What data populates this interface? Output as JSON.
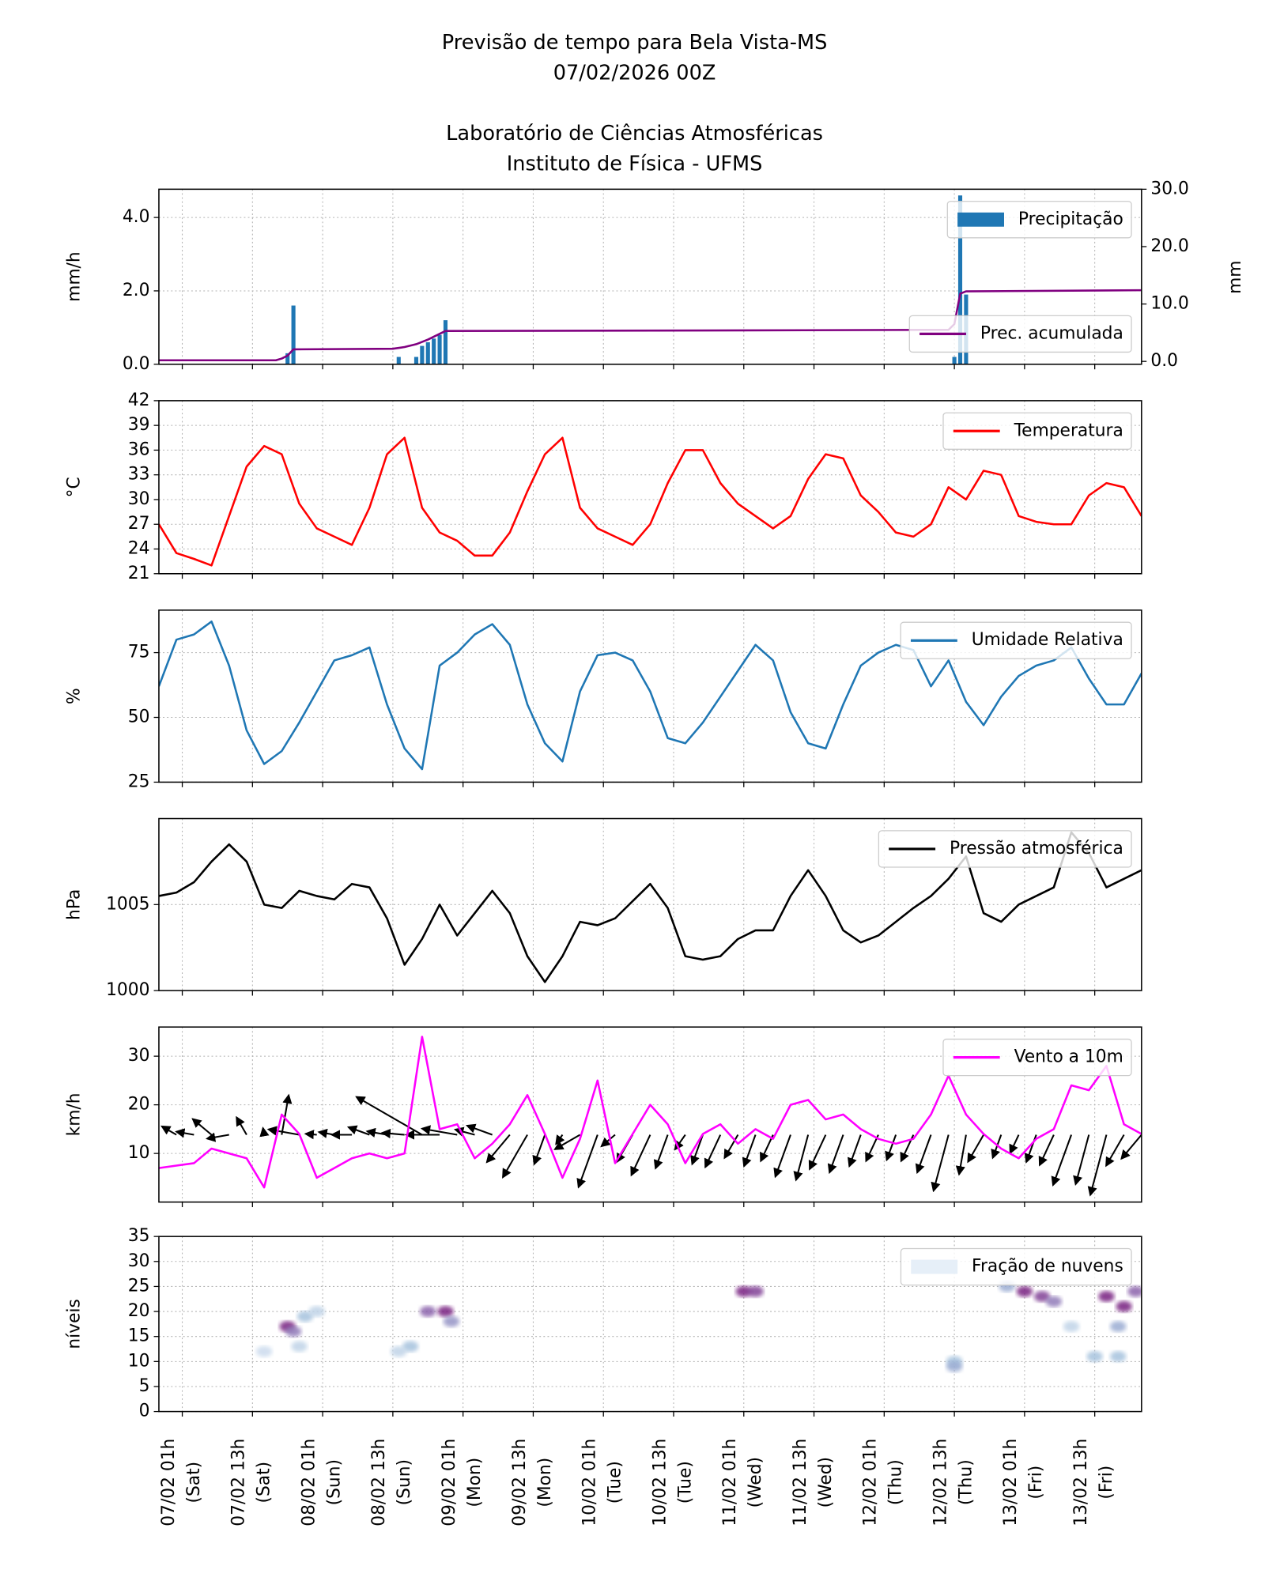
{
  "header": {
    "title_lines": [
      "Previsão de tempo para Bela Vista-MS",
      "07/02/2026 00Z",
      "Laboratório de Ciências Atmosféricas",
      "Instituto de Física - UFMS"
    ]
  },
  "chart_data": [
    {
      "type": "bar",
      "ylabel": "mm/h",
      "y2label": "mm",
      "xlim": [
        0,
        168
      ],
      "ylim": [
        0,
        4.77
      ],
      "y2lim": [
        -0.5,
        30
      ],
      "yticks": [
        {
          "value": 0,
          "label": "0.0"
        },
        {
          "value": 2,
          "label": "2.0"
        },
        {
          "value": 4,
          "label": "4.0"
        }
      ],
      "y2ticks": [
        {
          "value": 0,
          "label": "0.0"
        },
        {
          "value": 10,
          "label": "10.0"
        },
        {
          "value": 20,
          "label": "20.0"
        },
        {
          "value": 30,
          "label": "30.0"
        }
      ],
      "xticks": [
        4,
        16,
        28,
        40,
        52,
        64,
        76,
        88,
        100,
        112,
        124,
        136,
        148,
        160
      ],
      "grid": true,
      "legend": "upper right",
      "legend_y2": "lower right",
      "series": [
        {
          "name": "Precipitação",
          "color": "#1f77b4",
          "x": [
            22,
            23,
            41,
            44,
            45,
            46,
            47,
            48,
            49,
            136,
            137,
            138
          ],
          "values": [
            0.3,
            1.6,
            0.2,
            0.2,
            0.5,
            0.6,
            0.7,
            0.8,
            1.2,
            0.2,
            4.6,
            1.9
          ]
        },
        {
          "name": "Prec. acumulada",
          "color": "purple",
          "axis": "y2",
          "x": [
            0,
            20,
            21,
            22,
            23,
            40,
            42,
            44,
            46,
            48,
            49,
            100,
            135,
            136,
            137,
            138,
            168
          ],
          "values": [
            0.2,
            0.2,
            0.5,
            1.0,
            2.1,
            2.2,
            2.5,
            3.0,
            3.8,
            4.8,
            5.3,
            5.4,
            5.5,
            6.5,
            11.8,
            12.2,
            12.4
          ]
        }
      ]
    },
    {
      "type": "line",
      "ylabel": "°C",
      "xlim": [
        0,
        168
      ],
      "ylim": [
        21,
        42
      ],
      "yticks": [
        21,
        24,
        27,
        30,
        33,
        36,
        39,
        42
      ],
      "xticks": [
        4,
        16,
        28,
        40,
        52,
        64,
        76,
        88,
        100,
        112,
        124,
        136,
        148,
        160
      ],
      "grid": true,
      "legend": "upper right",
      "x": [
        0,
        3,
        6,
        9,
        12,
        15,
        18,
        21,
        24,
        27,
        30,
        33,
        36,
        39,
        42,
        45,
        48,
        51,
        54,
        57,
        60,
        63,
        66,
        69,
        72,
        75,
        78,
        81,
        84,
        87,
        90,
        93,
        96,
        99,
        102,
        105,
        108,
        111,
        114,
        117,
        120,
        123,
        126,
        129,
        132,
        135,
        138,
        141,
        144,
        147,
        150,
        153,
        156,
        159,
        162,
        165,
        168
      ],
      "series": [
        {
          "name": "Temperatura",
          "color": "red",
          "values": [
            27,
            23.5,
            22.8,
            22,
            28,
            34,
            36.5,
            35.5,
            29.5,
            26.5,
            25.5,
            24.5,
            29,
            35.5,
            37.5,
            29,
            26,
            25,
            23.2,
            23.2,
            26,
            31,
            35.5,
            37.5,
            29,
            26.5,
            25.5,
            24.5,
            27,
            32,
            36,
            36,
            32,
            29.5,
            28,
            26.5,
            28,
            32.5,
            35.5,
            35,
            30.5,
            28.5,
            26,
            25.5,
            27,
            31.5,
            30,
            33.5,
            33,
            28,
            27.3,
            27,
            27,
            30.5,
            32,
            31.5,
            28
          ]
        }
      ]
    },
    {
      "type": "line",
      "ylabel": "%",
      "xlim": [
        0,
        168
      ],
      "ylim": [
        25,
        91.4
      ],
      "yticks": [
        25,
        50,
        75
      ],
      "xticks": [
        4,
        16,
        28,
        40,
        52,
        64,
        76,
        88,
        100,
        112,
        124,
        136,
        148,
        160
      ],
      "grid": true,
      "legend": "upper right",
      "x": [
        0,
        3,
        6,
        9,
        12,
        15,
        18,
        21,
        24,
        27,
        30,
        33,
        36,
        39,
        42,
        45,
        48,
        51,
        54,
        57,
        60,
        63,
        66,
        69,
        72,
        75,
        78,
        81,
        84,
        87,
        90,
        93,
        96,
        99,
        102,
        105,
        108,
        111,
        114,
        117,
        120,
        123,
        126,
        129,
        132,
        135,
        138,
        141,
        144,
        147,
        150,
        153,
        156,
        159,
        162,
        165,
        168
      ],
      "series": [
        {
          "name": "Umidade Relativa",
          "color": "#1f77b4",
          "values": [
            62,
            80,
            82,
            87,
            70,
            45,
            32,
            37,
            48,
            60,
            72,
            74,
            77,
            55,
            38,
            30,
            70,
            75,
            82,
            86,
            78,
            55,
            40,
            33,
            60,
            74,
            75,
            72,
            60,
            42,
            40,
            48,
            58,
            68,
            78,
            72,
            52,
            40,
            38,
            55,
            70,
            75,
            78,
            76,
            62,
            72,
            56,
            47,
            58,
            66,
            70,
            72,
            77,
            65,
            55,
            55,
            67
          ]
        }
      ]
    },
    {
      "type": "line",
      "ylabel": "hPa",
      "xlim": [
        0,
        168
      ],
      "ylim": [
        1000,
        1010
      ],
      "yticks": [
        1000,
        1005
      ],
      "xticks": [
        4,
        16,
        28,
        40,
        52,
        64,
        76,
        88,
        100,
        112,
        124,
        136,
        148,
        160
      ],
      "grid": true,
      "legend": "upper right",
      "x": [
        0,
        3,
        6,
        9,
        12,
        15,
        18,
        21,
        24,
        27,
        30,
        33,
        36,
        39,
        42,
        45,
        48,
        51,
        54,
        57,
        60,
        63,
        66,
        69,
        72,
        75,
        78,
        81,
        84,
        87,
        90,
        93,
        96,
        99,
        102,
        105,
        108,
        111,
        114,
        117,
        120,
        123,
        126,
        129,
        132,
        135,
        138,
        141,
        144,
        147,
        150,
        153,
        156,
        159,
        162,
        165,
        168
      ],
      "series": [
        {
          "name": "Pressão atmosférica",
          "color": "black",
          "values": [
            1005.5,
            1005.7,
            1006.3,
            1007.5,
            1008.5,
            1007.5,
            1005,
            1004.8,
            1005.8,
            1005.5,
            1005.3,
            1006.2,
            1006,
            1004.2,
            1001.5,
            1003,
            1005,
            1003.2,
            1004.5,
            1005.8,
            1004.5,
            1002,
            1000.5,
            1002,
            1004,
            1003.8,
            1004.2,
            1005.2,
            1006.2,
            1004.8,
            1002,
            1001.8,
            1002,
            1003,
            1003.5,
            1003.5,
            1005.5,
            1007,
            1005.5,
            1003.5,
            1002.8,
            1003.2,
            1004,
            1004.8,
            1005.5,
            1006.5,
            1007.8,
            1004.5,
            1004,
            1005,
            1005.5,
            1006,
            1009.2,
            1008,
            1006,
            1006.5,
            1007
          ]
        }
      ]
    },
    {
      "type": "quiver",
      "ylabel": "km/h",
      "xlim": [
        0,
        168
      ],
      "ylim": [
        0,
        36
      ],
      "yticks": [
        10,
        20,
        30
      ],
      "xticks": [
        4,
        16,
        28,
        40,
        52,
        64,
        76,
        88,
        100,
        112,
        124,
        136,
        148,
        160
      ],
      "grid": true,
      "legend": "upper right",
      "arrow_color": "black",
      "x": [
        0,
        3,
        6,
        9,
        12,
        15,
        18,
        21,
        24,
        27,
        30,
        33,
        36,
        39,
        42,
        45,
        48,
        51,
        54,
        57,
        60,
        63,
        66,
        69,
        72,
        75,
        78,
        81,
        84,
        87,
        90,
        93,
        96,
        99,
        102,
        105,
        108,
        111,
        114,
        117,
        120,
        123,
        126,
        129,
        132,
        135,
        138,
        141,
        144,
        147,
        150,
        153,
        156,
        159,
        162,
        165,
        168
      ],
      "series": [
        {
          "name": "Vento a 10m",
          "color": "magenta",
          "values": [
            7,
            7.5,
            8,
            11,
            10,
            9,
            3,
            18,
            14,
            5,
            7,
            9,
            10,
            9,
            10,
            34,
            15,
            16,
            9,
            12,
            16,
            22,
            14,
            5,
            13,
            25,
            8,
            14,
            20,
            16,
            8,
            14,
            16,
            12,
            15,
            13,
            20,
            21,
            17,
            18,
            15,
            13,
            12,
            13,
            18,
            26,
            18,
            14,
            11,
            9,
            13,
            15,
            24,
            23,
            28,
            16,
            14
          ]
        }
      ],
      "wind_direction": [
        110,
        120,
        100,
        130,
        80,
        150,
        170,
        190,
        100,
        95,
        100,
        90,
        110,
        100,
        95,
        120,
        90,
        100,
        105,
        110,
        40,
        30,
        20,
        35,
        60,
        20,
        50,
        30,
        25,
        20,
        35,
        20,
        25,
        30,
        20,
        25,
        20,
        15,
        25,
        20,
        20,
        25,
        20,
        25,
        20,
        15,
        10,
        30,
        20,
        25,
        20,
        25,
        20,
        15,
        15,
        30,
        40
      ]
    },
    {
      "type": "heatmap",
      "ylabel": "níveis",
      "xlim": [
        0,
        168
      ],
      "ylim": [
        0,
        35
      ],
      "yticks": [
        0,
        5,
        10,
        15,
        20,
        25,
        30,
        35
      ],
      "xticks": [
        {
          "value": 4,
          "label": "07/02 01h"
        },
        {
          "value": 16,
          "label": "07/02 13h"
        },
        {
          "value": 28,
          "label": "08/02 01h"
        },
        {
          "value": 40,
          "label": "08/02 13h"
        },
        {
          "value": 52,
          "label": "09/02 01h"
        },
        {
          "value": 64,
          "label": "09/02 13h"
        },
        {
          "value": 76,
          "label": "10/02 01h"
        },
        {
          "value": 88,
          "label": "10/02 13h"
        },
        {
          "value": 100,
          "label": "11/02 01h"
        },
        {
          "value": 112,
          "label": "11/02 13h"
        },
        {
          "value": 124,
          "label": "12/02 01h"
        },
        {
          "value": 136,
          "label": "12/02 13h"
        },
        {
          "value": 148,
          "label": "13/02 01h"
        },
        {
          "value": 160,
          "label": "13/02 13h"
        }
      ],
      "xtick_days": [
        "(Sat)",
        "(Sat)",
        "(Sun)",
        "(Sun)",
        "(Mon)",
        "(Mon)",
        "(Tue)",
        "(Tue)",
        "(Wed)",
        "(Wed)",
        "(Thu)",
        "(Thu)",
        "(Fri)",
        "(Fri)"
      ],
      "grid": true,
      "legend": "upper right",
      "name": "Fração de nuvens",
      "color": "#e6eff8",
      "cells": [
        {
          "x": 22,
          "level": 17,
          "value": 0.9
        },
        {
          "x": 23,
          "level": 16,
          "value": 0.6
        },
        {
          "x": 25,
          "level": 19,
          "value": 0.3
        },
        {
          "x": 27,
          "level": 20,
          "value": 0.2
        },
        {
          "x": 18,
          "level": 12,
          "value": 0.15
        },
        {
          "x": 24,
          "level": 13,
          "value": 0.2
        },
        {
          "x": 46,
          "level": 20,
          "value": 0.7
        },
        {
          "x": 49,
          "level": 20,
          "value": 0.9
        },
        {
          "x": 50,
          "level": 18,
          "value": 0.5
        },
        {
          "x": 43,
          "level": 13,
          "value": 0.3
        },
        {
          "x": 41,
          "level": 12,
          "value": 0.2
        },
        {
          "x": 100,
          "level": 24,
          "value": 0.9
        },
        {
          "x": 102,
          "level": 24,
          "value": 0.8
        },
        {
          "x": 136,
          "level": 10,
          "value": 0.3
        },
        {
          "x": 136,
          "level": 9,
          "value": 0.4
        },
        {
          "x": 145,
          "level": 25,
          "value": 0.4
        },
        {
          "x": 148,
          "level": 24,
          "value": 0.9
        },
        {
          "x": 151,
          "level": 23,
          "value": 0.8
        },
        {
          "x": 153,
          "level": 22,
          "value": 0.6
        },
        {
          "x": 156,
          "level": 17,
          "value": 0.2
        },
        {
          "x": 160,
          "level": 11,
          "value": 0.3
        },
        {
          "x": 164,
          "level": 11,
          "value": 0.3
        },
        {
          "x": 162,
          "level": 23,
          "value": 0.9
        },
        {
          "x": 165,
          "level": 21,
          "value": 0.9
        },
        {
          "x": 167,
          "level": 24,
          "value": 0.7
        },
        {
          "x": 164,
          "level": 17,
          "value": 0.4
        }
      ]
    }
  ]
}
